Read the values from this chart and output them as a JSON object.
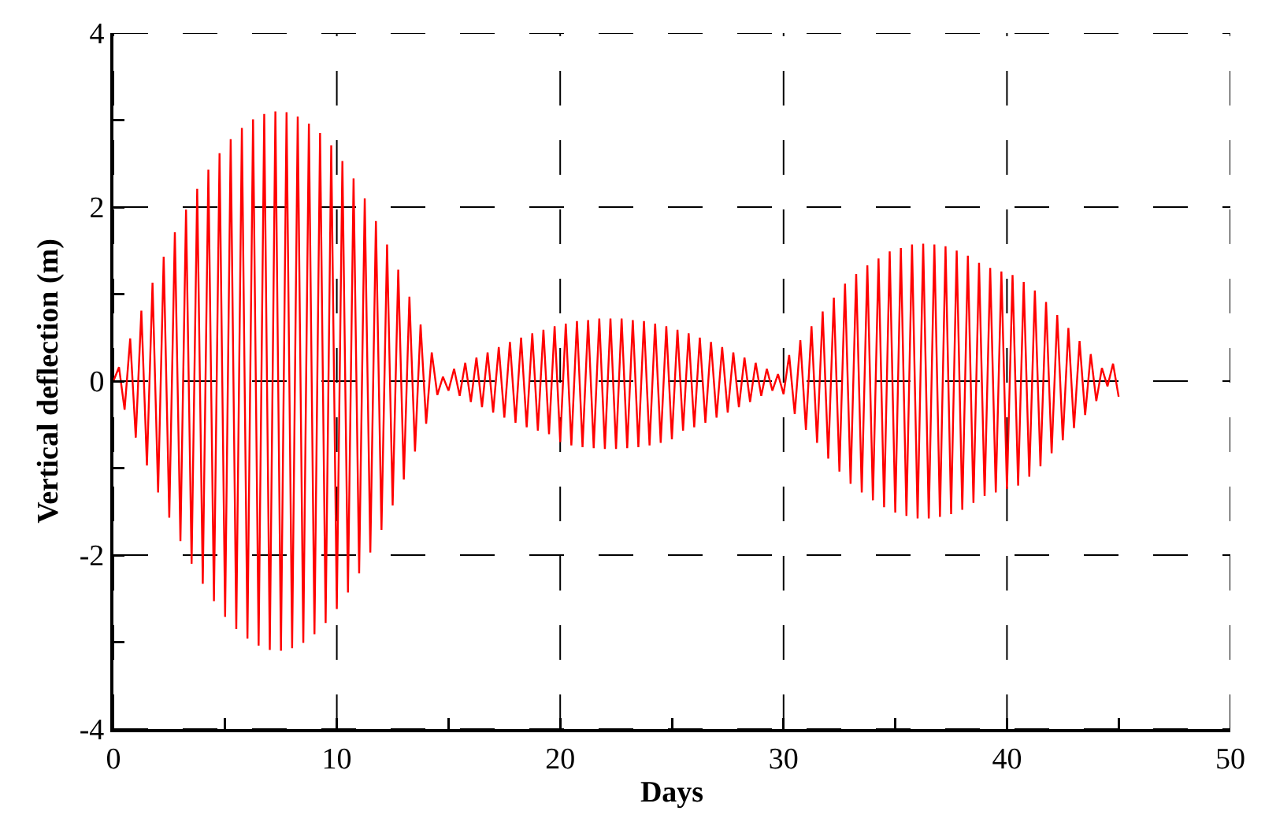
{
  "chart_data": {
    "type": "line",
    "xlabel": "Days",
    "ylabel": "Vertical deflection (m)",
    "xlim": [
      0,
      50
    ],
    "xticks": [
      0,
      {
        "value": 5,
        "label": null
      },
      10,
      {
        "value": 15,
        "label": null
      },
      20,
      {
        "value": 25,
        "label": null
      },
      30,
      {
        "value": 35,
        "label": null
      },
      40,
      {
        "value": 45,
        "label": null
      },
      50
    ],
    "ylim": [
      -4,
      4
    ],
    "yticks": [
      -4,
      {
        "value": -3,
        "label": null
      },
      -2,
      {
        "value": -1,
        "label": null
      },
      0,
      {
        "value": 1,
        "label": null
      },
      2,
      {
        "value": 3,
        "label": null
      },
      4
    ],
    "grid": true,
    "x": [
      0,
      0.25,
      0.5,
      0.75,
      1,
      1.25,
      1.5,
      1.75,
      2,
      2.25,
      2.5,
      2.75,
      3,
      3.25,
      3.5,
      3.75,
      4,
      4.25,
      4.5,
      4.75,
      5,
      5.25,
      5.5,
      5.75,
      6,
      6.25,
      6.5,
      6.75,
      7,
      7.25,
      7.5,
      7.75,
      8,
      8.25,
      8.5,
      8.75,
      9,
      9.25,
      9.5,
      9.75,
      10,
      10.25,
      10.5,
      10.75,
      11,
      11.25,
      11.5,
      11.75,
      12,
      12.25,
      12.5,
      12.75,
      13,
      13.25,
      13.5,
      13.75,
      14,
      14.25,
      14.5,
      14.75,
      15,
      15.25,
      15.5,
      15.75,
      16,
      16.25,
      16.5,
      16.75,
      17,
      17.25,
      17.5,
      17.75,
      18,
      18.25,
      18.5,
      18.75,
      19,
      19.25,
      19.5,
      19.75,
      20,
      20.25,
      20.5,
      20.75,
      21,
      21.25,
      21.5,
      21.75,
      22,
      22.25,
      22.5,
      22.75,
      23,
      23.25,
      23.5,
      23.75,
      24,
      24.25,
      24.5,
      24.75,
      25,
      25.25,
      25.5,
      25.75,
      26,
      26.25,
      26.5,
      26.75,
      27,
      27.25,
      27.5,
      27.75,
      28,
      28.25,
      28.5,
      28.75,
      29,
      29.25,
      29.5,
      29.75,
      30,
      30.25,
      30.5,
      30.75,
      31,
      31.25,
      31.5,
      31.75,
      32,
      32.25,
      32.5,
      32.75,
      33,
      33.25,
      33.5,
      33.75,
      34,
      34.25,
      34.5,
      34.75,
      35,
      35.25,
      35.5,
      35.75,
      36,
      36.25,
      36.5,
      36.75,
      37,
      37.25,
      37.5,
      37.75,
      38,
      38.25,
      38.5,
      38.75,
      39,
      39.25,
      39.5,
      39.75,
      40,
      40.25,
      40.5,
      40.75,
      41,
      41.25,
      41.5,
      41.75,
      42,
      42.25,
      42.5,
      42.75,
      43,
      43.25,
      43.5,
      43.75,
      44,
      44.25,
      44.5,
      44.75,
      45
    ],
    "series": [
      {
        "color": "#ff0000",
        "values": [
          0,
          0.16,
          -0.33,
          0.49,
          -0.65,
          0.81,
          -0.97,
          1.13,
          -1.28,
          1.43,
          -1.57,
          1.71,
          -1.84,
          1.97,
          -2.1,
          2.21,
          -2.33,
          2.43,
          -2.53,
          2.62,
          -2.71,
          2.78,
          -2.85,
          2.91,
          -2.96,
          3.01,
          -3.04,
          3.07,
          -3.09,
          3.1,
          -3.1,
          3.09,
          -3.07,
          3.04,
          -3.01,
          2.96,
          -2.91,
          2.85,
          -2.78,
          2.71,
          -2.62,
          2.53,
          -2.43,
          2.33,
          -2.21,
          2.1,
          -1.97,
          1.84,
          -1.71,
          1.57,
          -1.43,
          1.28,
          -1.13,
          0.97,
          -0.81,
          0.65,
          -0.49,
          0.33,
          -0.16,
          0.05,
          -0.11,
          0.14,
          -0.17,
          0.21,
          -0.24,
          0.27,
          -0.3,
          0.33,
          -0.36,
          0.39,
          -0.42,
          0.45,
          -0.48,
          0.5,
          -0.53,
          0.55,
          -0.57,
          0.59,
          -0.61,
          0.63,
          -0.7,
          0.66,
          -0.74,
          0.69,
          -0.76,
          0.7,
          -0.77,
          0.72,
          -0.78,
          0.72,
          -0.78,
          0.72,
          -0.77,
          0.7,
          -0.76,
          0.69,
          -0.74,
          0.66,
          -0.71,
          0.63,
          -0.67,
          0.59,
          -0.57,
          0.55,
          -0.53,
          0.5,
          -0.48,
          0.45,
          -0.42,
          0.39,
          -0.36,
          0.33,
          -0.3,
          0.27,
          -0.24,
          0.21,
          -0.17,
          0.14,
          -0.11,
          0.08,
          -0.15,
          0.3,
          -0.38,
          0.47,
          -0.56,
          0.63,
          -0.71,
          0.8,
          -0.89,
          0.96,
          -1.04,
          1.12,
          -1.18,
          1.23,
          -1.28,
          1.33,
          -1.37,
          1.41,
          -1.45,
          1.49,
          -1.51,
          1.53,
          -1.55,
          1.57,
          -1.58,
          1.58,
          -1.58,
          1.57,
          -1.56,
          1.55,
          -1.53,
          1.5,
          -1.48,
          1.44,
          -1.4,
          1.36,
          -1.32,
          1.3,
          -1.28,
          1.26,
          -1.24,
          1.22,
          -1.2,
          1.14,
          -1.1,
          1.04,
          -0.98,
          0.91,
          -0.83,
          0.76,
          -0.68,
          0.61,
          -0.54,
          0.46,
          -0.39,
          0.31,
          -0.23,
          0.15,
          -0.06,
          0.2,
          -0.18
        ]
      }
    ]
  }
}
